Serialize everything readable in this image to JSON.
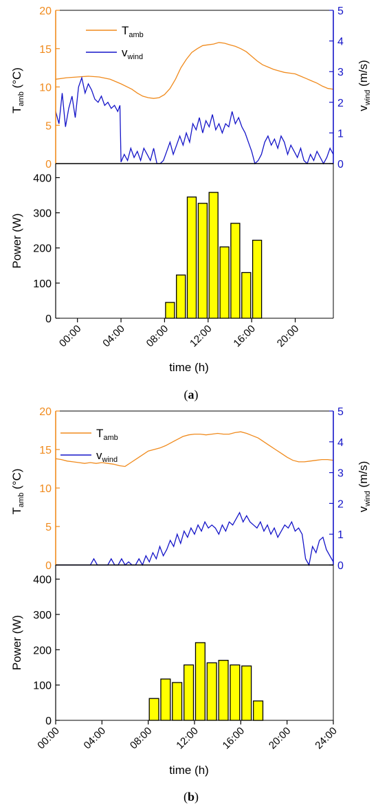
{
  "colors": {
    "temp": "#f08a1c",
    "wind": "#1414c8",
    "bar_fill": "#ffff00",
    "bar_stroke": "#000000",
    "axis": "#000000"
  },
  "chart_data": [
    {
      "panel_label": "(a)",
      "panel_letter": "a",
      "top": {
        "type": "line",
        "left_axis": {
          "label": "T",
          "sub": "amb",
          "unit": " (°C)",
          "ylim": [
            0,
            20
          ],
          "ticks": [
            "0",
            "5",
            "10",
            "15",
            "20"
          ]
        },
        "right_axis": {
          "label": "v",
          "sub": "wind",
          "unit": " (m/s)",
          "ylim": [
            0,
            5
          ],
          "ticks": [
            "0",
            "1",
            "2",
            "3",
            "4",
            "5"
          ]
        },
        "legend": [
          {
            "label": "T",
            "sub": "amb",
            "series": "temp"
          },
          {
            "label": "v",
            "sub": "wind",
            "series": "wind"
          }
        ],
        "series": [
          {
            "key": "temp",
            "axis": "left",
            "x": [
              -2,
              -1,
              0,
              1,
              2,
              3,
              4,
              5,
              5.5,
              6,
              6.5,
              7,
              7.5,
              8,
              8.5,
              9,
              9.5,
              10,
              10.5,
              11,
              11.5,
              12,
              12.5,
              13,
              13.5,
              14,
              14.5,
              15,
              15.5,
              16,
              16.5,
              17,
              17.5,
              18,
              18.5,
              19,
              19.5,
              20,
              20.5,
              21,
              21.5,
              22,
              22.5,
              23,
              23.5
            ],
            "y": [
              11,
              11.2,
              11.3,
              11.4,
              11.3,
              11,
              10.4,
              9.7,
              9.2,
              8.8,
              8.6,
              8.5,
              8.6,
              9.0,
              9.8,
              11.0,
              12.5,
              13.6,
              14.5,
              15.0,
              15.4,
              15.5,
              15.6,
              15.8,
              15.7,
              15.5,
              15.3,
              15.0,
              14.6,
              14.0,
              13.4,
              12.9,
              12.6,
              12.3,
              12.1,
              11.9,
              11.8,
              11.7,
              11.4,
              11.1,
              10.8,
              10.5,
              10.1,
              9.8,
              9.7
            ]
          },
          {
            "key": "wind",
            "axis": "right",
            "x": [
              -2,
              -1.7,
              -1.4,
              -1.1,
              -0.8,
              -0.5,
              -0.2,
              0.1,
              0.4,
              0.7,
              1.0,
              1.3,
              1.6,
              1.9,
              2.2,
              2.5,
              2.8,
              3.1,
              3.4,
              3.7,
              3.9,
              4.0,
              4.3,
              4.6,
              4.9,
              5.2,
              5.5,
              5.8,
              6.1,
              6.4,
              6.7,
              7.0,
              7.3,
              7.6,
              7.9,
              8.2,
              8.5,
              8.8,
              9.1,
              9.4,
              9.7,
              10.0,
              10.3,
              10.6,
              10.9,
              11.2,
              11.5,
              11.8,
              12.1,
              12.4,
              12.7,
              13.0,
              13.3,
              13.6,
              13.9,
              14.2,
              14.5,
              14.8,
              15.1,
              15.4,
              15.7,
              16.0,
              16.3,
              16.6,
              16.9,
              17.2,
              17.5,
              17.8,
              18.1,
              18.4,
              18.7,
              19.0,
              19.3,
              19.6,
              19.9,
              20.2,
              20.5,
              20.8,
              21.1,
              21.4,
              21.7,
              22.0,
              22.3,
              22.6,
              22.9,
              23.2,
              23.5
            ],
            "y": [
              1.7,
              1.3,
              2.3,
              1.2,
              1.8,
              2.2,
              1.5,
              2.5,
              2.8,
              2.3,
              2.6,
              2.4,
              2.1,
              2.0,
              2.2,
              1.9,
              2.0,
              1.8,
              1.9,
              1.7,
              1.9,
              0.05,
              0.3,
              0.1,
              0.5,
              0.2,
              0.4,
              0.1,
              0.5,
              0.3,
              0.1,
              0.5,
              0.0,
              0.0,
              0.1,
              0.4,
              0.7,
              0.3,
              0.6,
              0.9,
              0.6,
              1.0,
              0.7,
              1.3,
              1.1,
              1.5,
              1.0,
              1.4,
              1.2,
              1.6,
              1.1,
              1.3,
              1.0,
              1.3,
              1.2,
              1.7,
              1.3,
              1.5,
              1.2,
              1.0,
              0.7,
              0.4,
              0.0,
              0.1,
              0.3,
              0.7,
              0.9,
              0.6,
              0.8,
              0.5,
              0.9,
              0.7,
              0.3,
              0.6,
              0.4,
              0.2,
              0.5,
              0.1,
              0.0,
              0.3,
              0.1,
              0.4,
              0.2,
              0.0,
              0.2,
              0.5,
              0.3
            ]
          }
        ]
      },
      "bottom": {
        "type": "bar",
        "ylabel": "Power (W)",
        "ylim": [
          0,
          440
        ],
        "y_ticks": [
          "0",
          "100",
          "200",
          "300",
          "400"
        ],
        "xlabel": "time (h)",
        "xlim": [
          -2,
          23.5
        ],
        "x_ticks": [
          {
            "value": 0,
            "label": "00:00"
          },
          {
            "value": 4,
            "label": "04:00"
          },
          {
            "value": 8,
            "label": "08:00"
          },
          {
            "value": 12,
            "label": "12:00"
          },
          {
            "value": 16,
            "label": "16:00"
          },
          {
            "value": 20,
            "label": "20:00"
          }
        ],
        "bars": [
          {
            "x": 8.5,
            "value": 45
          },
          {
            "x": 9.5,
            "value": 123
          },
          {
            "x": 10.5,
            "value": 345
          },
          {
            "x": 11.5,
            "value": 327
          },
          {
            "x": 12.5,
            "value": 358
          },
          {
            "x": 13.5,
            "value": 203
          },
          {
            "x": 14.5,
            "value": 270
          },
          {
            "x": 15.5,
            "value": 130
          },
          {
            "x": 16.5,
            "value": 222
          }
        ]
      }
    },
    {
      "panel_label": "(b)",
      "panel_letter": "b",
      "top": {
        "type": "line",
        "left_axis": {
          "label": "T",
          "sub": "amb",
          "unit": " (°C)",
          "ylim": [
            0,
            20
          ],
          "ticks": [
            "0",
            "5",
            "10",
            "15",
            "20"
          ]
        },
        "right_axis": {
          "label": "v",
          "sub": "wind",
          "unit": " (m/s)",
          "ylim": [
            0,
            5
          ],
          "ticks": [
            "0",
            "1",
            "2",
            "3",
            "4",
            "5"
          ]
        },
        "legend": [
          {
            "label": "T",
            "sub": "amb",
            "series": "temp"
          },
          {
            "label": "v",
            "sub": "wind",
            "series": "wind"
          }
        ],
        "series": [
          {
            "key": "temp",
            "axis": "left",
            "x": [
              0,
              0.5,
              1,
              1.5,
              2,
              2.5,
              3,
              3.5,
              4,
              4.5,
              5,
              5.5,
              6,
              6.5,
              7,
              7.5,
              8,
              8.5,
              9,
              9.5,
              10,
              10.5,
              11,
              11.5,
              12,
              12.5,
              13,
              13.5,
              14,
              14.5,
              15,
              15.5,
              16,
              16.5,
              17,
              17.5,
              18,
              18.5,
              19,
              19.5,
              20,
              20.5,
              21,
              21.5,
              22,
              22.5,
              23,
              23.5,
              24
            ],
            "y": [
              13.8,
              13.7,
              13.5,
              13.4,
              13.3,
              13.2,
              13.3,
              13.2,
              13.3,
              13.2,
              13.1,
              12.9,
              12.8,
              13.3,
              13.8,
              14.3,
              14.8,
              15.0,
              15.2,
              15.5,
              15.9,
              16.3,
              16.7,
              16.9,
              17.0,
              17.0,
              16.9,
              17.0,
              17.1,
              17.0,
              17.0,
              17.2,
              17.3,
              17.1,
              16.8,
              16.5,
              16.0,
              15.5,
              15.0,
              14.5,
              14.0,
              13.6,
              13.4,
              13.4,
              13.5,
              13.6,
              13.7,
              13.7,
              13.6
            ]
          },
          {
            "key": "wind",
            "axis": "right",
            "x": [
              0,
              0.3,
              0.6,
              0.9,
              1.2,
              1.5,
              1.8,
              2.1,
              2.4,
              2.7,
              3.0,
              3.3,
              3.6,
              3.9,
              4.2,
              4.5,
              4.8,
              5.1,
              5.4,
              5.7,
              6.0,
              6.3,
              6.6,
              6.9,
              7.2,
              7.5,
              7.8,
              8.1,
              8.4,
              8.7,
              9.0,
              9.3,
              9.6,
              9.9,
              10.2,
              10.5,
              10.8,
              11.1,
              11.4,
              11.7,
              12.0,
              12.3,
              12.6,
              12.9,
              13.2,
              13.5,
              13.8,
              14.1,
              14.4,
              14.7,
              15.0,
              15.3,
              15.6,
              15.9,
              16.2,
              16.5,
              16.8,
              17.1,
              17.4,
              17.7,
              18.0,
              18.3,
              18.6,
              18.9,
              19.2,
              19.5,
              19.8,
              20.1,
              20.4,
              20.7,
              21.0,
              21.3,
              21.6,
              21.9,
              22.2,
              22.5,
              22.8,
              23.1,
              23.4,
              23.7,
              24.0
            ],
            "y": [
              0,
              0,
              0,
              0,
              0,
              0,
              0,
              0,
              0,
              0,
              0,
              0.2,
              0,
              0,
              0,
              0,
              0.2,
              0,
              0,
              0.2,
              0,
              0.1,
              0,
              0,
              0.2,
              0,
              0.3,
              0.1,
              0.4,
              0.2,
              0.6,
              0.3,
              0.5,
              0.8,
              0.6,
              1.0,
              0.7,
              1.1,
              0.9,
              1.2,
              1.0,
              1.3,
              1.1,
              1.4,
              1.2,
              1.3,
              1.2,
              1.0,
              1.3,
              1.1,
              1.4,
              1.3,
              1.5,
              1.7,
              1.4,
              1.6,
              1.4,
              1.3,
              1.2,
              1.4,
              1.1,
              1.3,
              1.0,
              1.2,
              0.9,
              1.1,
              1.3,
              1.2,
              1.4,
              1.1,
              1.2,
              1.0,
              0.2,
              0.0,
              0.6,
              0.4,
              0.8,
              0.9,
              0.5,
              0.3,
              0.1
            ]
          }
        ]
      },
      "bottom": {
        "type": "bar",
        "ylabel": "Power (W)",
        "ylim": [
          0,
          440
        ],
        "y_ticks": [
          "0",
          "100",
          "200",
          "300",
          "400"
        ],
        "xlabel": "time (h)",
        "xlim": [
          0,
          24
        ],
        "x_ticks": [
          {
            "value": 0,
            "label": "00:00"
          },
          {
            "value": 4,
            "label": "04:00"
          },
          {
            "value": 8,
            "label": "08:00"
          },
          {
            "value": 12,
            "label": "12:00"
          },
          {
            "value": 16,
            "label": "16:00"
          },
          {
            "value": 20,
            "label": "20:00"
          },
          {
            "value": 24,
            "label": "24:00"
          }
        ],
        "bars": [
          {
            "x": 8.5,
            "value": 62
          },
          {
            "x": 9.5,
            "value": 117
          },
          {
            "x": 10.5,
            "value": 107
          },
          {
            "x": 11.5,
            "value": 157
          },
          {
            "x": 12.5,
            "value": 220
          },
          {
            "x": 13.5,
            "value": 163
          },
          {
            "x": 14.5,
            "value": 170
          },
          {
            "x": 15.5,
            "value": 157
          },
          {
            "x": 16.5,
            "value": 154
          },
          {
            "x": 17.5,
            "value": 55
          }
        ]
      }
    }
  ]
}
